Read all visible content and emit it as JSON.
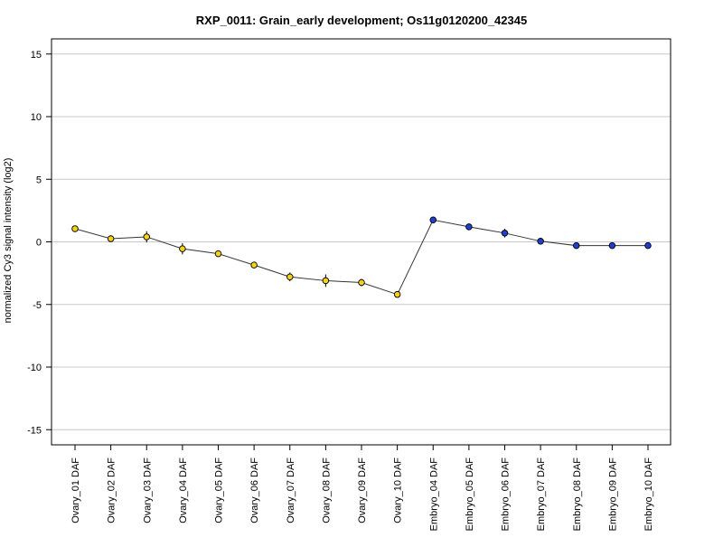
{
  "chart_data": {
    "type": "line",
    "title": "RXP_0011: Grain_early development; Os11g0120200_42345",
    "xlabel": "",
    "ylabel": "normalized Cy3 signal intensity (log2)",
    "ylim": [
      -16.2,
      16.2
    ],
    "yticks": [
      15,
      10,
      5,
      0,
      -5,
      -10,
      -15
    ],
    "ytick_labels": [
      "15",
      "10",
      "5",
      "0",
      "-5",
      "-10",
      "-15"
    ],
    "grid": true,
    "categories": [
      "Ovary_01 DAF",
      "Ovary_02 DAF",
      "Ovary_03 DAF",
      "Ovary_04 DAF",
      "Ovary_05 DAF",
      "Ovary_06 DAF",
      "Ovary_07 DAF",
      "Ovary_08 DAF",
      "Ovary_09 DAF",
      "Ovary_10 DAF",
      "Embryo_04 DAF",
      "Embryo_05 DAF",
      "Embryo_06 DAF",
      "Embryo_07 DAF",
      "Embryo_08 DAF",
      "Embryo_09 DAF",
      "Embryo_10 DAF"
    ],
    "values": [
      1.05,
      0.25,
      0.4,
      -0.55,
      -0.95,
      -1.85,
      -2.8,
      -3.1,
      -3.25,
      -4.2,
      1.75,
      1.2,
      0.7,
      0.05,
      -0.3,
      -0.3,
      -0.3
    ],
    "errors": [
      0.1,
      0.15,
      0.45,
      0.45,
      0.15,
      0.15,
      0.35,
      0.5,
      0.3,
      0.15,
      0.1,
      0.15,
      0.35,
      0.1,
      0.1,
      0.1,
      0.1
    ],
    "point_colors": [
      "#f2d21b",
      "#f2d21b",
      "#f2d21b",
      "#f2d21b",
      "#f2d21b",
      "#f2d21b",
      "#f2d21b",
      "#f2d21b",
      "#f2d21b",
      "#f2d21b",
      "#1f3fd0",
      "#1f3fd0",
      "#1f3fd0",
      "#1f3fd0",
      "#1f3fd0",
      "#1f3fd0",
      "#1f3fd0"
    ],
    "line_color": "#333333",
    "grid_color": "#c8c8c8"
  }
}
